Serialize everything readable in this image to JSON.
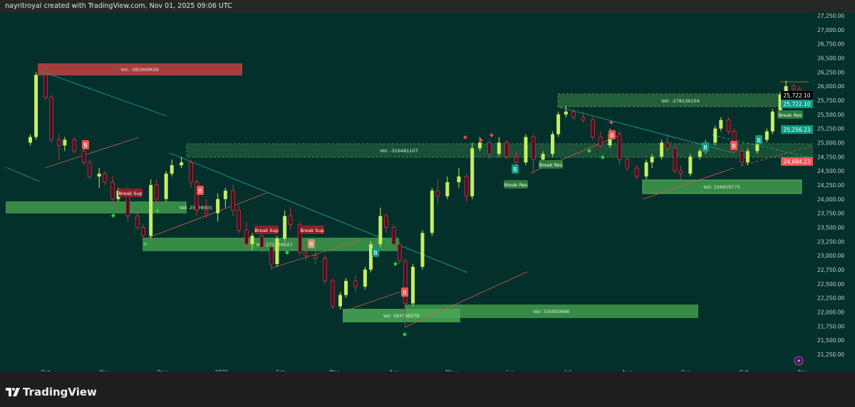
{
  "header": {
    "attribution": "nayritroyal created with TradingView.com, Nov 01, 2025 09:06 UTC"
  },
  "footer": {
    "brand": "TradingView"
  },
  "colors": {
    "background": "#03302a",
    "up_candle": "#c6ee62",
    "down_candle": "#4a1020",
    "down_border": "#c4364a",
    "demand_zone": "#3f9a4a",
    "supply_zone": "#b6413f",
    "teal_label": "#0f9a86",
    "red_label": "#f05454"
  },
  "zones": [
    {
      "label": "Vol: -382969626",
      "kind": "supply"
    },
    {
      "label": "Vol: -316481107",
      "kind": "demand-dashed"
    },
    {
      "label": "Vol: 253?8501",
      "kind": "demand"
    },
    {
      "label": "Vol: 271126027",
      "kind": "demand"
    },
    {
      "label": "Vol: 283?36379",
      "kind": "demand"
    },
    {
      "label": "Vol: 335950680",
      "kind": "demand"
    },
    {
      "label": "Vol: -278136104",
      "kind": "demand-dashed"
    },
    {
      "label": "Vol: 226919775",
      "kind": "demand"
    }
  ],
  "signals": {
    "break_sup": "Break Sup",
    "break_res": "Break Res",
    "b": "B"
  },
  "price_badges": [
    {
      "value": "25,722.10",
      "style": "black"
    },
    {
      "value": "25,722.10",
      "style": "teal"
    },
    {
      "value": "25,256.23",
      "style": "teal"
    },
    {
      "value": "24,684.23",
      "style": "red"
    }
  ],
  "chart_data": {
    "type": "candlestick",
    "title": "",
    "xlabel": "",
    "ylabel": "",
    "ylim": [
      21250,
      27250
    ],
    "grid": false,
    "x_ticks": [
      "Oct",
      "Nov",
      "Dec",
      "2025",
      "Feb",
      "Mar",
      "Apr",
      "May",
      "Jun",
      "Jul",
      "Aug",
      "Sep",
      "Oct",
      "Nov"
    ],
    "x_tick_dates": [
      "2024-10-01",
      "2024-11-01",
      "2024-12-01",
      "2025-01-01",
      "2025-02-01",
      "2025-03-01",
      "2025-04-01",
      "2025-05-01",
      "2025-06-01",
      "2025-07-01",
      "2025-08-01",
      "2025-09-01",
      "2025-10-01",
      "2025-11-01"
    ],
    "y_ticks": [
      "27,250.00",
      "27,000.00",
      "26,750.00",
      "26,500.00",
      "26,250.00",
      "26,000.00",
      "25,750.00",
      "25,500.00",
      "25,250.00",
      "25,000.00",
      "24,750.00",
      "24,500.00",
      "24,250.00",
      "24,000.00",
      "23,750.00",
      "23,500.00",
      "23,250.00",
      "23,000.00",
      "22,750.00",
      "22,500.00",
      "22,250.00",
      "22,000.00",
      "21,750.00",
      "21,500.00",
      "21,250.00"
    ],
    "columns": [
      "date",
      "open",
      "high",
      "low",
      "close"
    ],
    "candles": [
      [
        "2024-09-23",
        25000,
        25150,
        24950,
        25100
      ],
      [
        "2024-09-26",
        25100,
        26250,
        25050,
        26200
      ],
      [
        "2024-10-01",
        26200,
        26250,
        25750,
        25800
      ],
      [
        "2024-10-04",
        25800,
        25850,
        25000,
        25050
      ],
      [
        "2024-10-08",
        25050,
        25150,
        24700,
        24950
      ],
      [
        "2024-10-11",
        24950,
        25100,
        24850,
        25050
      ],
      [
        "2024-10-16",
        25050,
        25100,
        24800,
        24850
      ],
      [
        "2024-10-21",
        24850,
        24900,
        24600,
        24650
      ],
      [
        "2024-10-24",
        24650,
        24700,
        24350,
        24400
      ],
      [
        "2024-10-29",
        24400,
        24550,
        24200,
        24450
      ],
      [
        "2024-11-01",
        24450,
        24500,
        24250,
        24300
      ],
      [
        "2024-11-05",
        24300,
        24400,
        23900,
        24000
      ],
      [
        "2024-11-08",
        24000,
        24200,
        23950,
        24150
      ],
      [
        "2024-11-13",
        24150,
        24200,
        23600,
        23700
      ],
      [
        "2024-11-18",
        23700,
        23850,
        23450,
        23500
      ],
      [
        "2024-11-21",
        23500,
        23550,
        23300,
        23350
      ],
      [
        "2024-11-25",
        23350,
        24350,
        23300,
        24250
      ],
      [
        "2024-11-28",
        24250,
        24350,
        23900,
        24000
      ],
      [
        "2024-12-03",
        24000,
        24500,
        23950,
        24450
      ],
      [
        "2024-12-06",
        24450,
        24700,
        24400,
        24600
      ],
      [
        "2024-12-11",
        24600,
        24750,
        24550,
        24650
      ],
      [
        "2024-12-16",
        24650,
        24700,
        24200,
        24300
      ],
      [
        "2024-12-19",
        24300,
        24350,
        23700,
        23800
      ],
      [
        "2024-12-24",
        23800,
        24000,
        23650,
        23750
      ],
      [
        "2024-12-30",
        23750,
        24100,
        23600,
        24000
      ],
      [
        "2025-01-03",
        24000,
        24200,
        23850,
        24150
      ],
      [
        "2025-01-07",
        24150,
        24250,
        23700,
        23800
      ],
      [
        "2025-01-10",
        23800,
        23900,
        23400,
        23450
      ],
      [
        "2025-01-14",
        23450,
        23600,
        23150,
        23200
      ],
      [
        "2025-01-17",
        23200,
        23400,
        23100,
        23350
      ],
      [
        "2025-01-22",
        23350,
        23450,
        23050,
        23150
      ],
      [
        "2025-01-27",
        23150,
        23200,
        22750,
        22850
      ],
      [
        "2025-01-30",
        22850,
        23350,
        22800,
        23300
      ],
      [
        "2025-02-03",
        23300,
        23800,
        23250,
        23700
      ],
      [
        "2025-02-06",
        23700,
        23850,
        23450,
        23550
      ],
      [
        "2025-02-11",
        23550,
        23600,
        23000,
        23050
      ],
      [
        "2025-02-14",
        23050,
        23250,
        22900,
        23000
      ],
      [
        "2025-02-19",
        23000,
        23100,
        22850,
        22950
      ],
      [
        "2025-02-24",
        22950,
        23000,
        22500,
        22550
      ],
      [
        "2025-02-28",
        22550,
        22600,
        22050,
        22100
      ],
      [
        "2025-03-04",
        22100,
        22350,
        22050,
        22300
      ],
      [
        "2025-03-07",
        22300,
        22600,
        22250,
        22550
      ],
      [
        "2025-03-12",
        22550,
        22650,
        22350,
        22450
      ],
      [
        "2025-03-17",
        22450,
        22800,
        22400,
        22750
      ],
      [
        "2025-03-20",
        22750,
        23250,
        22700,
        23200
      ],
      [
        "2025-03-25",
        23200,
        23850,
        23150,
        23700
      ],
      [
        "2025-03-28",
        23700,
        23750,
        23400,
        23500
      ],
      [
        "2025-04-01",
        23500,
        23550,
        23150,
        23200
      ],
      [
        "2025-04-04",
        23200,
        23250,
        22850,
        22900
      ],
      [
        "2025-04-07",
        22900,
        22950,
        21750,
        22150
      ],
      [
        "2025-04-11",
        22150,
        22850,
        22100,
        22800
      ],
      [
        "2025-04-16",
        22800,
        23450,
        22750,
        23400
      ],
      [
        "2025-04-21",
        23400,
        24200,
        23350,
        24150
      ],
      [
        "2025-04-24",
        24150,
        24350,
        23900,
        24050
      ],
      [
        "2025-04-29",
        24050,
        24400,
        24000,
        24300
      ],
      [
        "2025-05-05",
        24300,
        24550,
        24200,
        24400
      ],
      [
        "2025-05-09",
        24400,
        24450,
        23950,
        24050
      ],
      [
        "2025-05-12",
        24050,
        25000,
        24000,
        24900
      ],
      [
        "2025-05-16",
        24900,
        25100,
        24850,
        25000
      ],
      [
        "2025-05-21",
        25000,
        25050,
        24700,
        24800
      ],
      [
        "2025-05-26",
        24800,
        25100,
        24750,
        25000
      ],
      [
        "2025-05-30",
        25000,
        25050,
        24700,
        24750
      ],
      [
        "2025-06-04",
        24750,
        24850,
        24550,
        24650
      ],
      [
        "2025-06-09",
        24650,
        25150,
        24600,
        25100
      ],
      [
        "2025-06-13",
        25100,
        25150,
        24450,
        24700
      ],
      [
        "2025-06-18",
        24700,
        24850,
        24650,
        24800
      ],
      [
        "2025-06-23",
        24800,
        25200,
        24750,
        25150
      ],
      [
        "2025-06-26",
        25150,
        25550,
        25100,
        25500
      ],
      [
        "2025-06-30",
        25500,
        25650,
        25450,
        25550
      ],
      [
        "2025-07-04",
        25550,
        25600,
        25400,
        25450
      ],
      [
        "2025-07-09",
        25450,
        25550,
        25350,
        25400
      ],
      [
        "2025-07-14",
        25400,
        25450,
        25050,
        25100
      ],
      [
        "2025-07-18",
        25100,
        25200,
        24900,
        24950
      ],
      [
        "2025-07-23",
        24950,
        25250,
        24900,
        25150
      ],
      [
        "2025-07-28",
        25150,
        25200,
        24600,
        24700
      ],
      [
        "2025-08-01",
        24700,
        24750,
        24500,
        24550
      ],
      [
        "2025-08-06",
        24550,
        24600,
        24350,
        24400
      ],
      [
        "2025-08-11",
        24400,
        24700,
        24350,
        24650
      ],
      [
        "2025-08-14",
        24650,
        24800,
        24550,
        24750
      ],
      [
        "2025-08-19",
        24750,
        25050,
        24700,
        25000
      ],
      [
        "2025-08-22",
        25000,
        25150,
        24850,
        24900
      ],
      [
        "2025-08-26",
        24900,
        24950,
        24450,
        24500
      ],
      [
        "2025-08-29",
        24500,
        24600,
        24350,
        24450
      ],
      [
        "2025-09-03",
        24450,
        24800,
        24400,
        24750
      ],
      [
        "2025-09-08",
        24750,
        24900,
        24700,
        24850
      ],
      [
        "2025-09-11",
        24850,
        25050,
        24800,
        25000
      ],
      [
        "2025-09-16",
        25000,
        25300,
        24950,
        25250
      ],
      [
        "2025-09-19",
        25250,
        25450,
        25200,
        25400
      ],
      [
        "2025-09-23",
        25400,
        25450,
        25150,
        25200
      ],
      [
        "2025-09-26",
        25200,
        25250,
        24800,
        24850
      ],
      [
        "2025-09-30",
        24850,
        24900,
        24600,
        24650
      ],
      [
        "2025-10-03",
        24650,
        24900,
        24600,
        24850
      ],
      [
        "2025-10-08",
        24850,
        25100,
        24800,
        25050
      ],
      [
        "2025-10-13",
        25050,
        25250,
        25000,
        25200
      ],
      [
        "2025-10-16",
        25200,
        25600,
        25150,
        25550
      ],
      [
        "2025-10-20",
        25550,
        25900,
        25500,
        25850
      ],
      [
        "2025-10-23",
        25850,
        26100,
        25750,
        26000
      ],
      [
        "2025-10-27",
        26000,
        26050,
        25750,
        25950
      ],
      [
        "2025-10-30",
        25950,
        26000,
        25700,
        25722.1
      ]
    ]
  }
}
